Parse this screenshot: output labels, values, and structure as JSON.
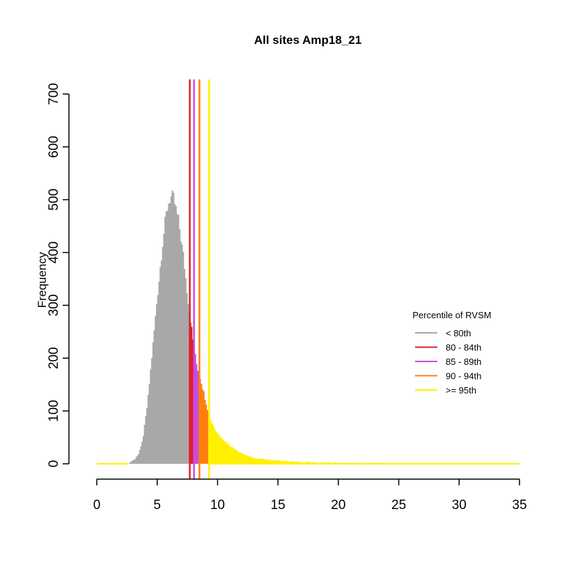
{
  "chart_data": {
    "type": "bar",
    "title": "All sites Amp18_21",
    "xlabel": "",
    "ylabel": "Frequency",
    "xlim": [
      0,
      35
    ],
    "ylim": [
      0,
      700
    ],
    "x_ticks": [
      "0",
      "5",
      "10",
      "15",
      "20",
      "25",
      "30",
      "35"
    ],
    "y_ticks": [
      "0",
      "100",
      "200",
      "300",
      "400",
      "500",
      "600",
      "700"
    ],
    "bin_width": 0.1,
    "profile": [
      [
        0,
        0
      ],
      [
        2.6,
        0
      ],
      [
        2.8,
        4
      ],
      [
        3.0,
        6
      ],
      [
        3.2,
        10
      ],
      [
        3.4,
        16
      ],
      [
        3.6,
        28
      ],
      [
        3.8,
        45
      ],
      [
        4.0,
        80
      ],
      [
        4.2,
        115
      ],
      [
        4.4,
        165
      ],
      [
        4.6,
        215
      ],
      [
        4.8,
        265
      ],
      [
        5.0,
        315
      ],
      [
        5.2,
        360
      ],
      [
        5.4,
        410
      ],
      [
        5.6,
        445
      ],
      [
        5.8,
        480
      ],
      [
        6.0,
        500
      ],
      [
        6.2,
        505
      ],
      [
        6.4,
        498
      ],
      [
        6.6,
        475
      ],
      [
        6.8,
        455
      ],
      [
        7.0,
        420
      ],
      [
        7.2,
        385
      ],
      [
        7.4,
        340
      ],
      [
        7.6,
        300
      ],
      [
        7.8,
        265
      ],
      [
        8.0,
        225
      ],
      [
        8.2,
        195
      ],
      [
        8.4,
        175
      ],
      [
        8.6,
        160
      ],
      [
        8.8,
        140
      ],
      [
        9.0,
        120
      ],
      [
        9.2,
        100
      ],
      [
        9.4,
        85
      ],
      [
        9.6,
        75
      ],
      [
        9.8,
        65
      ],
      [
        10.0,
        58
      ],
      [
        10.5,
        45
      ],
      [
        11.0,
        35
      ],
      [
        11.5,
        26
      ],
      [
        12.0,
        20
      ],
      [
        12.5,
        15
      ],
      [
        13.0,
        11
      ],
      [
        14.0,
        8
      ],
      [
        15.0,
        6
      ],
      [
        16.0,
        4
      ],
      [
        17.0,
        3
      ],
      [
        19.0,
        2
      ],
      [
        21.0,
        1
      ],
      [
        23.0,
        1
      ],
      [
        25.0,
        0.5
      ],
      [
        35.0,
        0
      ]
    ],
    "series": [
      {
        "name": "< 80th",
        "range": [
          2.6,
          7.7
        ],
        "color": "#A8A8A8"
      },
      {
        "name": "80 - 84th",
        "range": [
          7.7,
          8.05
        ],
        "color": "#DF1F26"
      },
      {
        "name": "85 - 89th",
        "range": [
          8.05,
          8.5
        ],
        "color": "#C84BE0"
      },
      {
        "name": "90 - 94th",
        "range": [
          8.5,
          9.3
        ],
        "color": "#FF7F0E"
      },
      {
        "name": ">= 95th",
        "range": [
          9.3,
          35.0
        ],
        "color": "#FFF000"
      }
    ],
    "threshold_lines": [
      {
        "x": 7.7,
        "color": "#DF1F26"
      },
      {
        "x": 8.05,
        "color": "#C84BE0"
      },
      {
        "x": 8.5,
        "color": "#FF7F0E"
      },
      {
        "x": 9.3,
        "color": "#FFF000"
      }
    ],
    "legend": {
      "title": "Percentile of RVSM",
      "position": "right",
      "entries": [
        "< 80th",
        "80 - 84th",
        "85 - 89th",
        "90 - 94th",
        ">= 95th"
      ]
    }
  }
}
